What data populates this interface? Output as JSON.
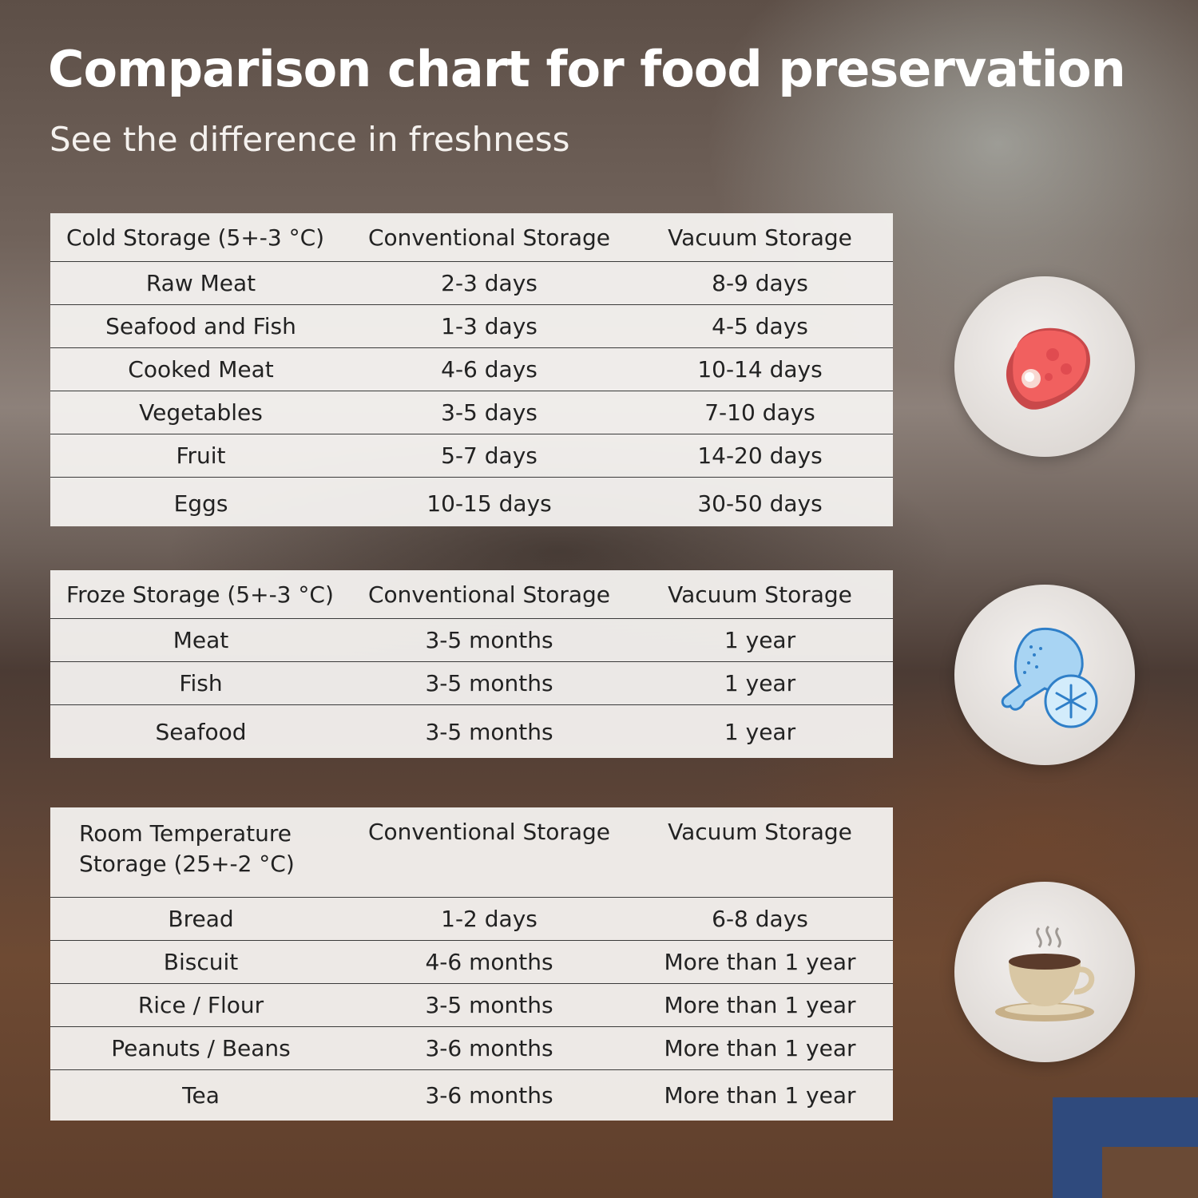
{
  "title": "Comparison chart for food preservation",
  "subtitle": "See the difference in freshness",
  "tables": [
    {
      "headers": [
        "Cold Storage (5+-3 °C)",
        "Conventional Storage",
        "Vacuum Storage"
      ],
      "rows": [
        [
          "Raw Meat",
          "2-3 days",
          "8-9 days"
        ],
        [
          "Seafood and Fish",
          "1-3 days",
          "4-5 days"
        ],
        [
          "Cooked Meat",
          "4-6 days",
          "10-14 days"
        ],
        [
          "Vegetables",
          "3-5 days",
          "7-10 days"
        ],
        [
          "Fruit",
          "5-7 days",
          "14-20 days"
        ],
        [
          "Eggs",
          "10-15 days",
          "30-50 days"
        ]
      ],
      "icon": "meat-steak-icon"
    },
    {
      "headers": [
        "Froze Storage (5+-3 °C)",
        "Conventional Storage",
        "Vacuum Storage"
      ],
      "rows": [
        [
          "Meat",
          "3-5 months",
          "1 year"
        ],
        [
          "Fish",
          "3-5 months",
          "1 year"
        ],
        [
          "Seafood",
          "3-5 months",
          "1 year"
        ]
      ],
      "icon": "frozen-drumstick-icon"
    },
    {
      "headers": [
        "Room Temperature Storage (25+-2 °C)",
        "Conventional Storage",
        "Vacuum Storage"
      ],
      "rows": [
        [
          "Bread",
          "1-2 days",
          "6-8 days"
        ],
        [
          "Biscuit",
          "4-6 months",
          "More than 1 year"
        ],
        [
          "Rice / Flour",
          "3-5 months",
          "More than 1 year"
        ],
        [
          "Peanuts / Beans",
          "3-6 months",
          "More than 1 year"
        ],
        [
          "Tea",
          "3-6 months",
          "More than 1 year"
        ]
      ],
      "icon": "hot-tea-cup-icon"
    }
  ],
  "colors": {
    "panel_bg": "#f5f3f1",
    "text": "#222222",
    "title": "#ffffff",
    "corner_accent": "#2f4a7d"
  }
}
